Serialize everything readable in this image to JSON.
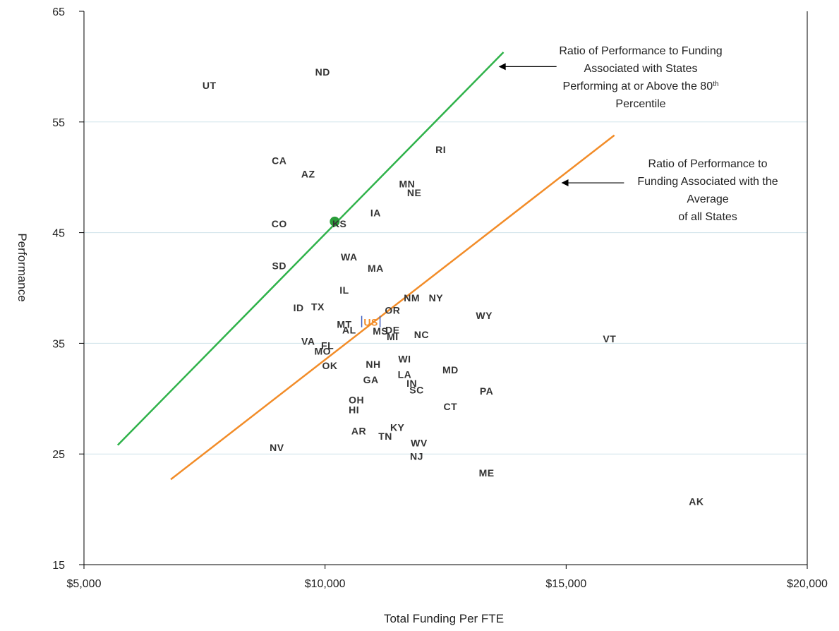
{
  "chart_data": {
    "type": "scatter",
    "xlabel": "Total Funding Per FTE",
    "ylabel": "Performance",
    "xlim": [
      5000,
      20000
    ],
    "ylim": [
      15,
      65
    ],
    "x_ticks": [
      5000,
      10000,
      15000,
      20000
    ],
    "x_tick_labels": [
      "$5,000",
      "$10,000",
      "$15,000",
      "$20,000"
    ],
    "y_ticks": [
      15,
      25,
      35,
      45,
      55,
      65
    ],
    "y_tick_labels": [
      "15",
      "25",
      "35",
      "45",
      "55",
      "65"
    ],
    "grid": "horizontal",
    "points": [
      {
        "label": "UT",
        "x": 7600,
        "y": 58.3
      },
      {
        "label": "ND",
        "x": 9950,
        "y": 59.5
      },
      {
        "label": "RI",
        "x": 12400,
        "y": 52.5
      },
      {
        "label": "CA",
        "x": 9050,
        "y": 51.5
      },
      {
        "label": "AZ",
        "x": 9650,
        "y": 50.3
      },
      {
        "label": "MN",
        "x": 11700,
        "y": 49.4
      },
      {
        "label": "NE",
        "x": 11850,
        "y": 48.6
      },
      {
        "label": "IA",
        "x": 11050,
        "y": 46.8
      },
      {
        "label": "CO",
        "x": 9050,
        "y": 45.8
      },
      {
        "label": "KS",
        "x": 10300,
        "y": 45.8
      },
      {
        "label": "WA",
        "x": 10500,
        "y": 42.8
      },
      {
        "label": "MA",
        "x": 11050,
        "y": 41.8
      },
      {
        "label": "SD",
        "x": 9050,
        "y": 42.0
      },
      {
        "label": "IL",
        "x": 10400,
        "y": 39.8
      },
      {
        "label": "NM",
        "x": 11800,
        "y": 39.1
      },
      {
        "label": "NY",
        "x": 12300,
        "y": 39.1
      },
      {
        "label": "ID",
        "x": 9450,
        "y": 38.2
      },
      {
        "label": "TX",
        "x": 9850,
        "y": 38.3
      },
      {
        "label": "OR",
        "x": 11400,
        "y": 38.0
      },
      {
        "label": "WY",
        "x": 13300,
        "y": 37.5
      },
      {
        "label": "MT",
        "x": 10400,
        "y": 36.7
      },
      {
        "label": "AL",
        "x": 10500,
        "y": 36.2
      },
      {
        "label": "MS",
        "x": 11150,
        "y": 36.1
      },
      {
        "label": "DE",
        "x": 11400,
        "y": 36.2
      },
      {
        "label": "MI",
        "x": 11400,
        "y": 35.6
      },
      {
        "label": "NC",
        "x": 12000,
        "y": 35.8
      },
      {
        "label": "VT",
        "x": 15900,
        "y": 35.4
      },
      {
        "label": "VA",
        "x": 9650,
        "y": 35.2
      },
      {
        "label": "FL",
        "x": 10050,
        "y": 34.8
      },
      {
        "label": "MO",
        "x": 9950,
        "y": 34.3
      },
      {
        "label": "OK",
        "x": 10100,
        "y": 33.0
      },
      {
        "label": "WI",
        "x": 11650,
        "y": 33.6
      },
      {
        "label": "NH",
        "x": 11000,
        "y": 33.1
      },
      {
        "label": "MD",
        "x": 12600,
        "y": 32.6
      },
      {
        "label": "LA",
        "x": 11650,
        "y": 32.2
      },
      {
        "label": "GA",
        "x": 10950,
        "y": 31.7
      },
      {
        "label": "IN",
        "x": 11800,
        "y": 31.4
      },
      {
        "label": "SC",
        "x": 11900,
        "y": 30.8
      },
      {
        "label": "PA",
        "x": 13350,
        "y": 30.7
      },
      {
        "label": "OH",
        "x": 10650,
        "y": 29.9
      },
      {
        "label": "CT",
        "x": 12600,
        "y": 29.3
      },
      {
        "label": "HI",
        "x": 10600,
        "y": 29.0
      },
      {
        "label": "AR",
        "x": 10700,
        "y": 27.1
      },
      {
        "label": "KY",
        "x": 11500,
        "y": 27.4
      },
      {
        "label": "TN",
        "x": 11250,
        "y": 26.6
      },
      {
        "label": "WV",
        "x": 11950,
        "y": 26.0
      },
      {
        "label": "NV",
        "x": 9000,
        "y": 25.6
      },
      {
        "label": "NJ",
        "x": 11900,
        "y": 24.8
      },
      {
        "label": "ME",
        "x": 13350,
        "y": 23.3
      },
      {
        "label": "AK",
        "x": 17700,
        "y": 20.7
      }
    ],
    "us_point": {
      "label": "US",
      "x": 10950,
      "y": 36.9,
      "color": "#f28c28",
      "bar_color": "#4060c0"
    },
    "highlight_point": {
      "x": 10200,
      "y": 46.0,
      "color": "#2a9d3a"
    },
    "lines": [
      {
        "color": "#2fb24a",
        "from": [
          5700,
          25.8
        ],
        "to": [
          13700,
          61.3
        ]
      },
      {
        "color": "#f28c28",
        "from": [
          6800,
          22.7
        ],
        "to": [
          16000,
          53.8
        ]
      }
    ],
    "annotations": [
      {
        "lines": [
          "Ratio of Performance to Funding",
          "Associated with States",
          "Performing at or Above the 80",
          "Percentile"
        ],
        "sup": "th",
        "arrow_to": [
          13600,
          60.0
        ],
        "arrow_from": [
          14800,
          60.0
        ]
      },
      {
        "lines": [
          "Ratio of Performance to",
          "Funding Associated with the",
          "Average",
          "of all States"
        ],
        "arrow_to": [
          14900,
          49.5
        ],
        "arrow_from": [
          16200,
          49.5
        ]
      }
    ]
  }
}
